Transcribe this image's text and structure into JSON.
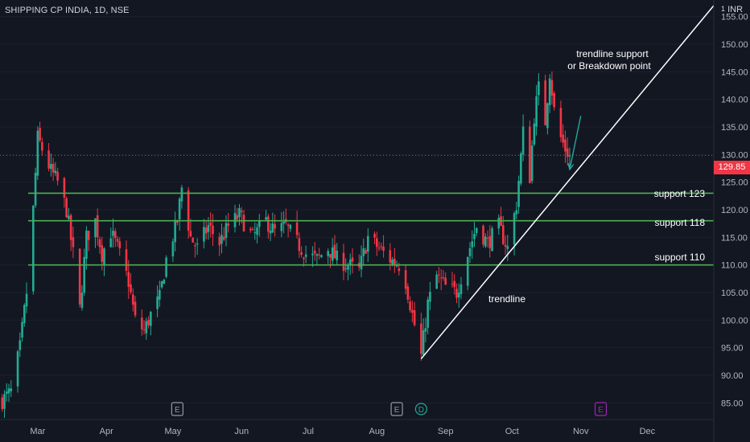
{
  "header": {
    "title": "SHIPPING CP INDIA, 1D, NSE",
    "currency_prefix": "1",
    "currency": "INR"
  },
  "last_price": "129.85",
  "annotations": {
    "trendline_note_line1": "trendline support",
    "trendline_note_line2": "or Breakdown point",
    "trendline_label": "trendline",
    "support_123": "support 123",
    "support_118": "support 118",
    "support_110": "support 110"
  },
  "event_markers": [
    {
      "label": "E",
      "date": "2023-05-03",
      "color": "#9598a1"
    },
    {
      "label": "E",
      "date": "2023-08-10",
      "color": "#9598a1"
    },
    {
      "label": "D",
      "date": "2023-08-21",
      "color": "#22ab94"
    },
    {
      "label": "E",
      "date": "2023-11-10",
      "color": "#9c27b0"
    }
  ],
  "colors": {
    "background": "#131722",
    "up": "#22ab94",
    "down": "#f23645",
    "support": "#4caf50",
    "trendline": "#ffffff",
    "annotation_arrow": "#26a69a"
  },
  "chart_data": {
    "type": "candlestick",
    "title": "SHIPPING CP INDIA, 1D, NSE",
    "x_ticks": [
      "Mar",
      "Apr",
      "May",
      "Jun",
      "Jul",
      "Aug",
      "Sep",
      "Oct",
      "Nov",
      "Dec"
    ],
    "y_ticks": [
      "85.00",
      "90.00",
      "95.00",
      "100.00",
      "105.00",
      "110.00",
      "115.00",
      "120.00",
      "125.00",
      "130.00",
      "135.00",
      "140.00",
      "145.00",
      "150.00",
      "155.00"
    ],
    "ylim": [
      82,
      158
    ],
    "xlim": [
      "2023-02-12",
      "2023-12-31"
    ],
    "last_close": 129.85,
    "support_levels": [
      123,
      118,
      110
    ],
    "trendline": {
      "from": {
        "date": "2023-08-21",
        "price": 93
      },
      "to": {
        "date": "2023-12-31",
        "price": 157
      }
    },
    "arrow": {
      "from": {
        "date": "2023-11-01",
        "price": 137
      },
      "to": {
        "date": "2023-10-27",
        "price": 127.3
      }
    },
    "price_path": [
      [
        "2023-02-13",
        85.5
      ],
      [
        "2023-02-17",
        87
      ],
      [
        "2023-02-21",
        95
      ],
      [
        "2023-02-24",
        105
      ],
      [
        "2023-02-27",
        120
      ],
      [
        "2023-03-01",
        133
      ],
      [
        "2023-03-03",
        131
      ],
      [
        "2023-03-07",
        127
      ],
      [
        "2023-03-10",
        125
      ],
      [
        "2023-03-14",
        120
      ],
      [
        "2023-03-17",
        112
      ],
      [
        "2023-03-20",
        102
      ],
      [
        "2023-03-23",
        115
      ],
      [
        "2023-03-27",
        118
      ],
      [
        "2023-03-30",
        112
      ],
      [
        "2023-04-03",
        116
      ],
      [
        "2023-04-06",
        113
      ],
      [
        "2023-04-11",
        107
      ],
      [
        "2023-04-14",
        100
      ],
      [
        "2023-04-18",
        98
      ],
      [
        "2023-04-21",
        101
      ],
      [
        "2023-04-25",
        104
      ],
      [
        "2023-04-28",
        111
      ],
      [
        "2023-05-03",
        118
      ],
      [
        "2023-05-05",
        124
      ],
      [
        "2023-05-09",
        115
      ],
      [
        "2023-05-12",
        113
      ],
      [
        "2023-05-17",
        117
      ],
      [
        "2023-05-22",
        114
      ],
      [
        "2023-05-26",
        117
      ],
      [
        "2023-05-31",
        119
      ],
      [
        "2023-06-06",
        115
      ],
      [
        "2023-06-12",
        118
      ],
      [
        "2023-06-16",
        116
      ],
      [
        "2023-06-21",
        117
      ],
      [
        "2023-06-26",
        114
      ],
      [
        "2023-06-30",
        112
      ],
      [
        "2023-07-05",
        111
      ],
      [
        "2023-07-10",
        113
      ],
      [
        "2023-07-14",
        111
      ],
      [
        "2023-07-19",
        110
      ],
      [
        "2023-07-24",
        109
      ],
      [
        "2023-07-28",
        115
      ],
      [
        "2023-08-02",
        113
      ],
      [
        "2023-08-07",
        111
      ],
      [
        "2023-08-11",
        110
      ],
      [
        "2023-08-14",
        107
      ],
      [
        "2023-08-17",
        101
      ],
      [
        "2023-08-21",
        93.5
      ],
      [
        "2023-08-24",
        103
      ],
      [
        "2023-08-28",
        108
      ],
      [
        "2023-09-01",
        106
      ],
      [
        "2023-09-06",
        105
      ],
      [
        "2023-09-11",
        112
      ],
      [
        "2023-09-15",
        117
      ],
      [
        "2023-09-20",
        114
      ],
      [
        "2023-09-25",
        117
      ],
      [
        "2023-09-29",
        113
      ],
      [
        "2023-10-03",
        121
      ],
      [
        "2023-10-06",
        134
      ],
      [
        "2023-10-09",
        126
      ],
      [
        "2023-10-11",
        137
      ],
      [
        "2023-10-13",
        142
      ],
      [
        "2023-10-16",
        136
      ],
      [
        "2023-10-18",
        145
      ],
      [
        "2023-10-20",
        138
      ],
      [
        "2023-10-23",
        133
      ],
      [
        "2023-10-25",
        131
      ],
      [
        "2023-10-27",
        129.85
      ]
    ]
  }
}
